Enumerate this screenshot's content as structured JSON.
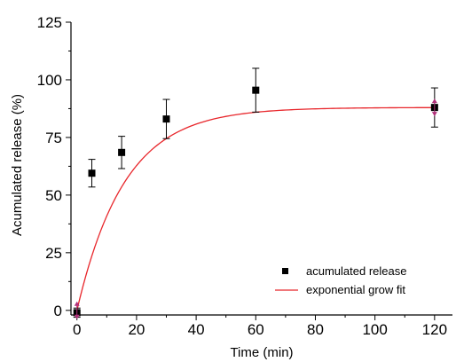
{
  "chart_data": {
    "type": "scatter",
    "title": "",
    "xlabel": "Time (min)",
    "ylabel": "Acumulated release (%)",
    "xlim": [
      -2,
      126
    ],
    "ylim": [
      -2,
      125
    ],
    "xticks": [
      0,
      20,
      40,
      60,
      80,
      100,
      120
    ],
    "yticks": [
      0,
      25,
      50,
      75,
      100,
      125
    ],
    "xtick_labels": [
      "0",
      "20",
      "40",
      "60",
      "80",
      "100",
      "120"
    ],
    "ytick_labels": [
      "0",
      "25",
      "50",
      "75",
      "100",
      "125"
    ],
    "grid": false,
    "legend_position": "bottom-right",
    "series": [
      {
        "name": "acumulated release",
        "type": "scatter",
        "marker": "square",
        "color": "#000000",
        "x": [
          0,
          5,
          15,
          30,
          60,
          120
        ],
        "y": [
          -1,
          59.5,
          68.5,
          83,
          95.5,
          88
        ],
        "error": [
          2,
          6,
          7,
          8.5,
          9.5,
          8.5
        ]
      },
      {
        "name": "exponential grow fit",
        "type": "line",
        "color": "#e8262b",
        "model": "y = A*(1 - exp(-x/t))",
        "A": 88,
        "t": 16
      }
    ],
    "annotations": [
      {
        "type": "double-arrow",
        "color": "#b0307a",
        "x": 0,
        "y": 0
      },
      {
        "type": "double-arrow",
        "color": "#b0307a",
        "x": 120,
        "y": 88
      }
    ]
  }
}
